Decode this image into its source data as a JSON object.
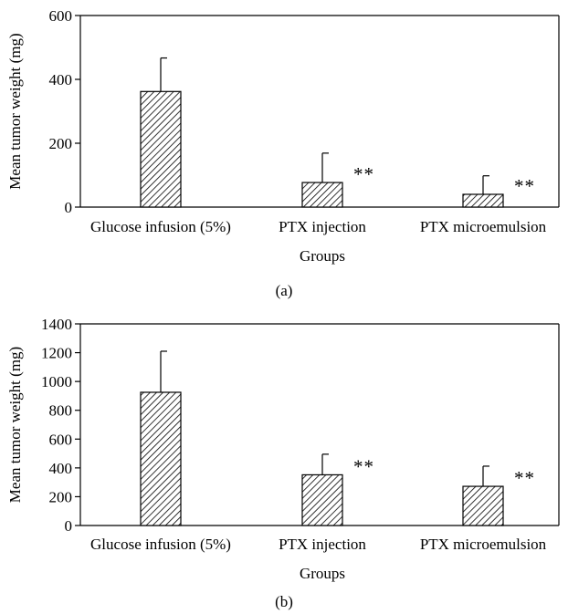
{
  "chart_data": [
    {
      "type": "bar",
      "panel_label": "(a)",
      "categories": [
        "Glucose infusion (5%)",
        "PTX injection",
        "PTX microemulsion"
      ],
      "values": [
        362,
        77,
        40
      ],
      "error_upper": [
        105,
        92,
        58
      ],
      "annotations": [
        "",
        "**",
        "**"
      ],
      "xlabel": "Groups",
      "ylabel": "Mean tumor weight (mg)",
      "ylim": [
        0,
        600
      ],
      "yticks": [
        "0",
        "200",
        "400",
        "600"
      ],
      "grid": false,
      "bar_fill": "diagonal hatch"
    },
    {
      "type": "bar",
      "panel_label": "(b)",
      "categories": [
        "Glucose infusion (5%)",
        "PTX injection",
        "PTX microemulsion"
      ],
      "values": [
        925,
        352,
        272
      ],
      "error_upper": [
        285,
        143,
        140
      ],
      "annotations": [
        "",
        "**",
        "**"
      ],
      "xlabel": "Groups",
      "ylabel": "Mean tumor weight (mg)",
      "ylim": [
        0,
        1400
      ],
      "yticks": [
        "0",
        "200",
        "400",
        "600",
        "800",
        "1000",
        "1200",
        "1400"
      ],
      "grid": false,
      "bar_fill": "diagonal hatch"
    }
  ]
}
